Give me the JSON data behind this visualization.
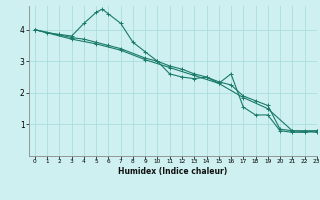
{
  "background_color": "#cff0f0",
  "grid_color": "#aadddd",
  "line_color": "#1a7a6a",
  "xlabel": "Humidex (Indice chaleur)",
  "xlim": [
    -0.5,
    23
  ],
  "ylim": [
    0,
    4.75
  ],
  "yticks": [
    1,
    2,
    3,
    4
  ],
  "xticks": [
    0,
    1,
    2,
    3,
    4,
    5,
    6,
    7,
    8,
    9,
    10,
    11,
    12,
    13,
    14,
    15,
    16,
    17,
    18,
    19,
    20,
    21,
    22,
    23
  ],
  "line1_x": [
    0,
    1,
    2,
    3,
    4,
    5,
    5.5,
    6,
    7,
    8,
    9,
    10,
    11,
    12,
    13,
    14,
    15,
    16,
    17,
    18,
    19,
    20,
    21,
    22,
    23
  ],
  "line1_y": [
    4.0,
    3.9,
    3.85,
    3.8,
    4.2,
    4.55,
    4.65,
    4.5,
    4.2,
    3.6,
    3.3,
    3.0,
    2.6,
    2.5,
    2.45,
    2.5,
    2.3,
    2.6,
    1.55,
    1.3,
    1.3,
    0.8,
    0.75,
    0.75,
    0.8
  ],
  "line2_x": [
    0,
    3,
    4,
    5,
    6,
    7,
    9,
    10,
    11,
    12,
    13,
    14,
    15,
    16,
    17,
    18,
    19,
    20,
    21,
    22,
    23
  ],
  "line2_y": [
    4.0,
    3.75,
    3.7,
    3.6,
    3.5,
    3.4,
    3.1,
    3.0,
    2.85,
    2.75,
    2.6,
    2.5,
    2.35,
    2.25,
    1.9,
    1.75,
    1.6,
    0.85,
    0.8,
    0.8,
    0.8
  ],
  "line3_x": [
    0,
    3,
    5,
    7,
    9,
    11,
    13,
    15,
    17,
    19,
    21,
    23
  ],
  "line3_y": [
    4.0,
    3.7,
    3.55,
    3.35,
    3.05,
    2.8,
    2.55,
    2.3,
    1.85,
    1.5,
    0.8,
    0.75
  ]
}
